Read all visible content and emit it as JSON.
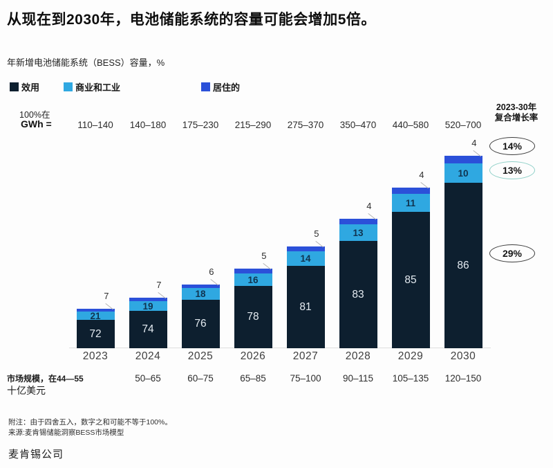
{
  "ui": {
    "title": "从现在到2030年，电池储能系统的容量可能会增加5倍。",
    "subtitle": "年新增电池储能系统（BESS）容量，%"
  },
  "chart_data": {
    "type": "bar",
    "stacked": true,
    "title": "年新增电池储能系统（BESS）容量，%",
    "unit_note_line1": "100%在",
    "unit_note_line2": "GWh =",
    "categories": [
      "2023",
      "2024",
      "2025",
      "2026",
      "2027",
      "2028",
      "2029",
      "2030"
    ],
    "gwh_ranges": [
      "110–140",
      "140–180",
      "175–230",
      "215–290",
      "275–370",
      "350–470",
      "440–580",
      "520–700"
    ],
    "series": [
      {
        "name": "效用",
        "color": "#0d1f2f",
        "values": [
          72,
          74,
          76,
          78,
          81,
          83,
          85,
          86
        ]
      },
      {
        "name": "商业和工业",
        "color": "#2fa8e1",
        "values": [
          21,
          19,
          18,
          16,
          14,
          13,
          11,
          10
        ]
      },
      {
        "name": "居住的",
        "color": "#2b50d9",
        "values": [
          7,
          7,
          6,
          5,
          5,
          4,
          4,
          4
        ]
      }
    ],
    "bar_heights_note": "bar total height scales with GWh range midpoint; labels inside are percent",
    "cagr_header_line1": "2023-30年",
    "cagr_header_line2": "复合增长率",
    "cagr": [
      {
        "label": "14%",
        "series": "居住的"
      },
      {
        "label": "13%",
        "series": "商业和工业"
      },
      {
        "label": "29%",
        "series": "效用"
      }
    ],
    "market_label_line1": "市场规模，在44—55",
    "market_label_line2": "十亿美元",
    "market_ranges": [
      "50–65",
      "60–75",
      "65–85",
      "75–100",
      "90–115",
      "105–135",
      "120–150"
    ],
    "legend_position": "top",
    "grid": "off",
    "ylim_percent": [
      0,
      100
    ]
  },
  "footer": {
    "note1": "附注：由于四舍五入，数字之和可能不等于100%。",
    "note2": "来源:麦肯锡储能洞察BESS市场模型",
    "company": "麦肯锡公司"
  }
}
